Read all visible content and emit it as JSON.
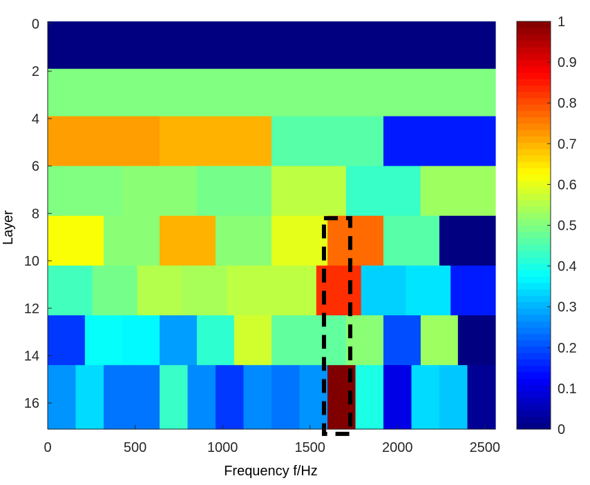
{
  "chart_data": {
    "type": "heatmap",
    "title": "",
    "xlabel": "Frequency f/Hz",
    "ylabel": "Layer",
    "xlim": [
      0,
      2560
    ],
    "ylim": [
      0,
      17.1
    ],
    "y_reversed": true,
    "x_ticks": [
      "0",
      "500",
      "1000",
      "1500",
      "2000",
      "2500"
    ],
    "y_ticks": [
      "0",
      "2",
      "4",
      "6",
      "8",
      "10",
      "12",
      "14",
      "16"
    ],
    "colorbar": {
      "colormap": "jet",
      "range": [
        0,
        1
      ],
      "ticks": [
        "0",
        "0.1",
        "0.2",
        "0.3",
        "0.4",
        "0.5",
        "0.6",
        "0.7",
        "0.8",
        "0.9",
        "1"
      ]
    },
    "rows": [
      {
        "layer_range": [
          -0.1,
          1.9
        ],
        "cells": [
          {
            "f": [
              0,
              2560
            ],
            "v": 0.0
          }
        ]
      },
      {
        "layer_range": [
          1.9,
          3.9
        ],
        "cells": [
          {
            "f": [
              0,
              2560
            ],
            "v": 0.5
          }
        ]
      },
      {
        "layer_range": [
          3.9,
          6.0
        ],
        "cells": [
          {
            "f": [
              0,
              640
            ],
            "v": 0.72
          },
          {
            "f": [
              640,
              1280
            ],
            "v": 0.7
          },
          {
            "f": [
              1280,
              1920
            ],
            "v": 0.46
          },
          {
            "f": [
              1920,
              2560
            ],
            "v": 0.15
          }
        ]
      },
      {
        "layer_range": [
          6.0,
          8.1
        ],
        "cells": [
          {
            "f": [
              0,
              426
            ],
            "v": 0.5
          },
          {
            "f": [
              426,
              852
            ],
            "v": 0.51
          },
          {
            "f": [
              852,
              1280
            ],
            "v": 0.49
          },
          {
            "f": [
              1280,
              1706
            ],
            "v": 0.56
          },
          {
            "f": [
              1706,
              2132
            ],
            "v": 0.43
          },
          {
            "f": [
              2132,
              2560
            ],
            "v": 0.53
          }
        ]
      },
      {
        "layer_range": [
          8.1,
          10.2
        ],
        "cells": [
          {
            "f": [
              0,
              320
            ],
            "v": 0.62
          },
          {
            "f": [
              320,
              640
            ],
            "v": 0.51
          },
          {
            "f": [
              640,
              960
            ],
            "v": 0.7
          },
          {
            "f": [
              960,
              1280
            ],
            "v": 0.51
          },
          {
            "f": [
              1280,
              1600
            ],
            "v": 0.6
          },
          {
            "f": [
              1600,
              1920
            ],
            "v": 0.77
          },
          {
            "f": [
              1920,
              2240
            ],
            "v": 0.46
          },
          {
            "f": [
              2240,
              2560
            ],
            "v": 0.0
          }
        ]
      },
      {
        "layer_range": [
          10.2,
          12.3
        ],
        "cells": [
          {
            "f": [
              0,
              256
            ],
            "v": 0.44
          },
          {
            "f": [
              256,
              512
            ],
            "v": 0.49
          },
          {
            "f": [
              512,
              768
            ],
            "v": 0.55
          },
          {
            "f": [
              768,
              1024
            ],
            "v": 0.54
          },
          {
            "f": [
              1024,
              1280
            ],
            "v": 0.56
          },
          {
            "f": [
              1280,
              1536
            ],
            "v": 0.56
          },
          {
            "f": [
              1536,
              1792
            ],
            "v": 0.83
          },
          {
            "f": [
              1792,
              2048
            ],
            "v": 0.33
          },
          {
            "f": [
              2048,
              2304
            ],
            "v": 0.35
          },
          {
            "f": [
              2304,
              2560
            ],
            "v": 0.15
          }
        ]
      },
      {
        "layer_range": [
          12.3,
          14.4
        ],
        "cells": [
          {
            "f": [
              0,
              213
            ],
            "v": 0.18
          },
          {
            "f": [
              213,
              426
            ],
            "v": 0.38
          },
          {
            "f": [
              426,
              640
            ],
            "v": 0.37
          },
          {
            "f": [
              640,
              853
            ],
            "v": 0.28
          },
          {
            "f": [
              853,
              1066
            ],
            "v": 0.42
          },
          {
            "f": [
              1066,
              1280
            ],
            "v": 0.58
          },
          {
            "f": [
              1280,
              1493
            ],
            "v": 0.47
          },
          {
            "f": [
              1493,
              1706
            ],
            "v": 0.47
          },
          {
            "f": [
              1706,
              1920
            ],
            "v": 0.51
          },
          {
            "f": [
              1920,
              2133
            ],
            "v": 0.2
          },
          {
            "f": [
              2133,
              2346
            ],
            "v": 0.53
          },
          {
            "f": [
              2346,
              2560
            ],
            "v": 0.0
          }
        ]
      },
      {
        "layer_range": [
          14.4,
          17.1
        ],
        "cells": [
          {
            "f": [
              0,
              160
            ],
            "v": 0.27
          },
          {
            "f": [
              160,
              320
            ],
            "v": 0.34
          },
          {
            "f": [
              320,
              480
            ],
            "v": 0.24
          },
          {
            "f": [
              480,
              640
            ],
            "v": 0.24
          },
          {
            "f": [
              640,
              800
            ],
            "v": 0.43
          },
          {
            "f": [
              800,
              960
            ],
            "v": 0.26
          },
          {
            "f": [
              960,
              1120
            ],
            "v": 0.18
          },
          {
            "f": [
              1120,
              1280
            ],
            "v": 0.26
          },
          {
            "f": [
              1280,
              1440
            ],
            "v": 0.24
          },
          {
            "f": [
              1440,
              1600
            ],
            "v": 0.27
          },
          {
            "f": [
              1600,
              1760
            ],
            "v": 1.0
          },
          {
            "f": [
              1760,
              1920
            ],
            "v": 0.4
          },
          {
            "f": [
              1920,
              2080
            ],
            "v": 0.1
          },
          {
            "f": [
              2080,
              2240
            ],
            "v": 0.34
          },
          {
            "f": [
              2240,
              2400
            ],
            "v": 0.32
          },
          {
            "f": [
              2400,
              2560
            ],
            "v": 0.02
          }
        ]
      }
    ],
    "annotations": [
      {
        "type": "dashed-box",
        "x": [
          1580,
          1730
        ],
        "y": [
          8.2,
          17.3
        ],
        "color": "#000000"
      }
    ]
  }
}
